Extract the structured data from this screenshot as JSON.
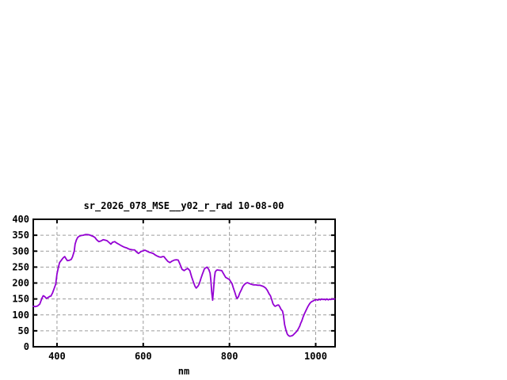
{
  "window": {
    "background": "#ffffff"
  },
  "chart": {
    "title": "sr_2026_078_MSE__y02_r_rad 10-08-00",
    "xlabel": "nm",
    "colors": {
      "line": "#9400d3",
      "grid": "#9c9c9c",
      "border": "#000000",
      "text": "#000000",
      "background": "#ffffff"
    }
  },
  "chart_data": {
    "type": "line",
    "title": "sr_2026_078_MSE__y02_r_rad 10-08-00",
    "xlabel": "nm",
    "ylabel": "",
    "xlim": [
      345,
      1045
    ],
    "ylim": [
      0,
      400
    ],
    "grid": true,
    "legend": false,
    "x_ticks": {
      "values": [
        400,
        600,
        800,
        1000
      ],
      "labels": [
        "400",
        "600",
        "800",
        "1000"
      ]
    },
    "y_ticks": {
      "values": [
        0,
        50,
        100,
        150,
        200,
        250,
        300,
        350,
        400
      ],
      "labels": [
        "0",
        "50",
        "100",
        "150",
        "200",
        "250",
        "300",
        "350",
        "400"
      ]
    },
    "series": [
      {
        "name": "sr_2026_078_MSE__y02_r_rad",
        "color": "#9400d3",
        "points": [
          [
            345,
            127
          ],
          [
            350,
            126
          ],
          [
            355,
            128
          ],
          [
            360,
            134
          ],
          [
            365,
            152
          ],
          [
            368,
            160
          ],
          [
            371,
            158
          ],
          [
            375,
            152
          ],
          [
            379,
            154
          ],
          [
            383,
            158
          ],
          [
            386,
            159
          ],
          [
            390,
            170
          ],
          [
            394,
            185
          ],
          [
            397,
            196
          ],
          [
            400,
            228
          ],
          [
            403,
            248
          ],
          [
            406,
            264
          ],
          [
            412,
            275
          ],
          [
            415,
            280
          ],
          [
            418,
            283
          ],
          [
            421,
            276
          ],
          [
            424,
            270
          ],
          [
            428,
            271
          ],
          [
            433,
            274
          ],
          [
            436,
            282
          ],
          [
            440,
            300
          ],
          [
            442,
            322
          ],
          [
            445,
            335
          ],
          [
            448,
            343
          ],
          [
            452,
            347
          ],
          [
            456,
            349
          ],
          [
            461,
            350
          ],
          [
            466,
            352
          ],
          [
            470,
            352
          ],
          [
            475,
            351
          ],
          [
            479,
            349
          ],
          [
            484,
            346
          ],
          [
            488,
            343
          ],
          [
            492,
            336
          ],
          [
            497,
            330
          ],
          [
            502,
            332
          ],
          [
            507,
            336
          ],
          [
            511,
            335
          ],
          [
            516,
            333
          ],
          [
            520,
            328
          ],
          [
            525,
            322
          ],
          [
            529,
            328
          ],
          [
            534,
            330
          ],
          [
            538,
            326
          ],
          [
            543,
            322
          ],
          [
            548,
            318
          ],
          [
            552,
            315
          ],
          [
            557,
            312
          ],
          [
            562,
            310
          ],
          [
            566,
            307
          ],
          [
            571,
            305
          ],
          [
            576,
            304
          ],
          [
            580,
            304
          ],
          [
            585,
            297
          ],
          [
            589,
            293
          ],
          [
            595,
            299
          ],
          [
            600,
            301
          ],
          [
            604,
            303
          ],
          [
            609,
            300
          ],
          [
            613,
            297
          ],
          [
            618,
            295
          ],
          [
            623,
            293
          ],
          [
            628,
            288
          ],
          [
            632,
            285
          ],
          [
            637,
            282
          ],
          [
            641,
            281
          ],
          [
            645,
            283
          ],
          [
            648,
            283
          ],
          [
            652,
            276
          ],
          [
            657,
            268
          ],
          [
            662,
            264
          ],
          [
            666,
            268
          ],
          [
            672,
            272
          ],
          [
            677,
            273
          ],
          [
            681,
            272
          ],
          [
            685,
            260
          ],
          [
            690,
            243
          ],
          [
            695,
            239
          ],
          [
            699,
            243
          ],
          [
            703,
            246
          ],
          [
            708,
            239
          ],
          [
            712,
            220
          ],
          [
            716,
            205
          ],
          [
            720,
            190
          ],
          [
            723,
            184
          ],
          [
            727,
            190
          ],
          [
            730,
            198
          ],
          [
            734,
            215
          ],
          [
            737,
            227
          ],
          [
            742,
            245
          ],
          [
            748,
            250
          ],
          [
            752,
            243
          ],
          [
            755,
            231
          ],
          [
            757,
            208
          ],
          [
            759,
            170
          ],
          [
            761,
            146
          ],
          [
            763,
            177
          ],
          [
            765,
            215
          ],
          [
            767,
            235
          ],
          [
            770,
            240
          ],
          [
            772,
            241
          ],
          [
            777,
            240
          ],
          [
            782,
            239
          ],
          [
            786,
            230
          ],
          [
            791,
            218
          ],
          [
            796,
            214
          ],
          [
            800,
            211
          ],
          [
            803,
            204
          ],
          [
            806,
            198
          ],
          [
            809,
            185
          ],
          [
            813,
            169
          ],
          [
            816,
            155
          ],
          [
            818,
            151
          ],
          [
            821,
            158
          ],
          [
            824,
            169
          ],
          [
            828,
            180
          ],
          [
            831,
            189
          ],
          [
            835,
            196
          ],
          [
            839,
            200
          ],
          [
            842,
            201
          ],
          [
            847,
            198
          ],
          [
            851,
            196
          ],
          [
            856,
            194
          ],
          [
            861,
            194
          ],
          [
            866,
            193
          ],
          [
            870,
            193
          ],
          [
            875,
            191
          ],
          [
            879,
            189
          ],
          [
            884,
            184
          ],
          [
            888,
            177
          ],
          [
            892,
            166
          ],
          [
            895,
            160
          ],
          [
            898,
            148
          ],
          [
            901,
            135
          ],
          [
            904,
            129
          ],
          [
            906,
            127
          ],
          [
            909,
            129
          ],
          [
            912,
            131
          ],
          [
            914,
            131
          ],
          [
            917,
            125
          ],
          [
            919,
            119
          ],
          [
            921,
            115
          ],
          [
            923,
            112
          ],
          [
            925,
            100
          ],
          [
            928,
            69
          ],
          [
            931,
            52
          ],
          [
            934,
            40
          ],
          [
            937,
            35
          ],
          [
            940,
            33
          ],
          [
            944,
            34
          ],
          [
            947,
            36
          ],
          [
            950,
            40
          ],
          [
            953,
            44
          ],
          [
            957,
            50
          ],
          [
            960,
            57
          ],
          [
            963,
            65
          ],
          [
            965,
            73
          ],
          [
            968,
            82
          ],
          [
            971,
            94
          ],
          [
            974,
            104
          ],
          [
            978,
            115
          ],
          [
            981,
            124
          ],
          [
            984,
            131
          ],
          [
            987,
            137
          ],
          [
            990,
            141
          ],
          [
            993,
            143
          ],
          [
            996,
            145
          ],
          [
            999,
            147
          ],
          [
            1002,
            148
          ],
          [
            1005,
            146
          ],
          [
            1008,
            149
          ],
          [
            1011,
            147
          ],
          [
            1014,
            150
          ],
          [
            1017,
            148
          ],
          [
            1020,
            149
          ],
          [
            1023,
            147
          ],
          [
            1026,
            150
          ],
          [
            1029,
            147
          ],
          [
            1032,
            149
          ],
          [
            1035,
            148
          ],
          [
            1038,
            150
          ],
          [
            1041,
            149
          ],
          [
            1044,
            150
          ]
        ]
      }
    ]
  }
}
